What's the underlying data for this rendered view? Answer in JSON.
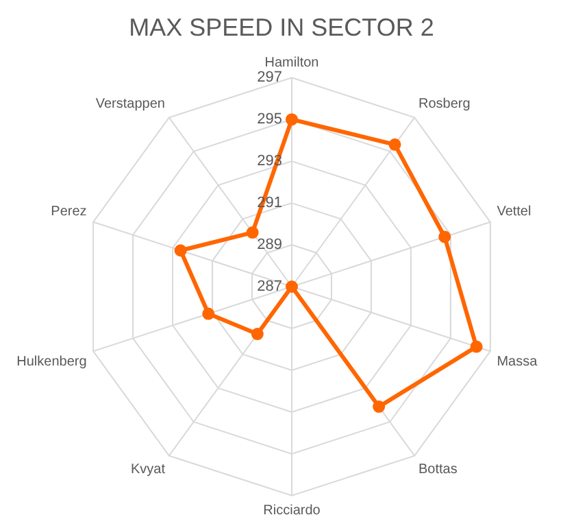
{
  "chart_data": {
    "type": "radar",
    "title": "MAX SPEED IN SECTOR 2",
    "categories": [
      "Hamilton",
      "Rosberg",
      "Vettel",
      "Massa",
      "Bottas",
      "Ricciardo",
      "Kvyat",
      "Hulkenberg",
      "Perez",
      "Verstappen"
    ],
    "series": [
      {
        "color": "#ff6600",
        "values": [
          295,
          295.4,
          294.7,
          296.3,
          294.1,
          287,
          289.8,
          291.2,
          292.6,
          290.2
        ]
      }
    ],
    "ylim": [
      287,
      297
    ],
    "yticks": [
      287,
      289,
      291,
      293,
      295,
      297
    ],
    "grid": true,
    "legend": false,
    "marker": "circle"
  }
}
